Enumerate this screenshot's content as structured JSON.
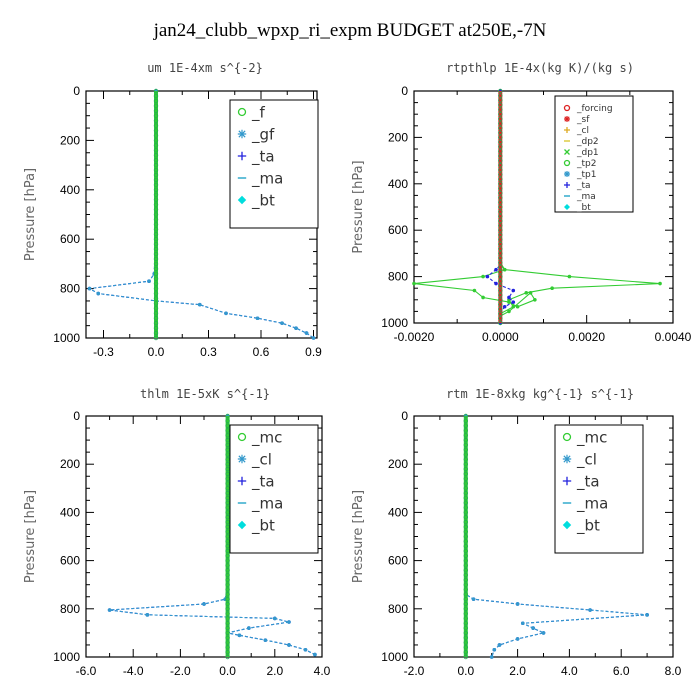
{
  "title": "jan24_clubb_wpxp_ri_expm  BUDGET at250E,-7N",
  "chart_data": [
    {
      "type": "line",
      "title": "um  1E-4xm s^{-2}",
      "ylabel": "Pressure [hPa]",
      "xlim": [
        -0.4,
        0.92
      ],
      "ylim": [
        1000,
        0
      ],
      "xticks": [
        "-0.3",
        "0.0",
        "0.3",
        "0.6",
        "0.9"
      ],
      "xtick_values": [
        -0.3,
        0.0,
        0.3,
        0.6,
        0.9
      ],
      "yticks": [
        "0",
        "200",
        "400",
        "600",
        "800",
        "1000"
      ],
      "legend_position": "top-right",
      "legend": [
        {
          "name": "_f",
          "color": "#33cc33",
          "marker": "o"
        },
        {
          "name": "_gf",
          "color": "#3399cc",
          "marker": "*"
        },
        {
          "name": "_ta",
          "color": "#2222dd",
          "marker": "+"
        },
        {
          "name": "_ma",
          "color": "#33aacc",
          "marker": "-"
        },
        {
          "name": "_bt",
          "color": "#00dddd",
          "marker": "diamond"
        }
      ],
      "series": [
        {
          "name": "_ta",
          "color": "#1133dd",
          "dashed": true,
          "x": [
            0,
            0,
            -0.01,
            -0.04,
            -0.38,
            -0.33,
            0.0,
            0.25,
            0.4,
            0.58,
            0.72,
            0.8,
            0.86,
            0.9
          ],
          "y": [
            0,
            500,
            740,
            770,
            800,
            820,
            850,
            865,
            900,
            920,
            940,
            960,
            980,
            1000
          ]
        },
        {
          "name": "_gf",
          "color": "#3399cc",
          "dashed": true,
          "x": [
            0,
            0,
            -0.01,
            -0.04,
            -0.38,
            -0.33,
            0.0,
            0.25,
            0.4,
            0.58,
            0.72,
            0.8,
            0.86,
            0.9
          ],
          "y": [
            0,
            500,
            740,
            770,
            800,
            820,
            850,
            865,
            900,
            920,
            940,
            960,
            980,
            1000
          ]
        },
        {
          "name": "_f",
          "color": "#33cc33",
          "dashed": false,
          "x": [
            0,
            0,
            0,
            0,
            0,
            0,
            0,
            0,
            0,
            0,
            0
          ],
          "y": [
            0,
            100,
            200,
            300,
            400,
            500,
            600,
            700,
            800,
            900,
            1000
          ]
        }
      ]
    },
    {
      "type": "line",
      "title": "rtpthlp  1E-4x(kg K)/(kg s)",
      "ylabel": "Pressure [hPa]",
      "xlim": [
        -0.002,
        0.004
      ],
      "ylim": [
        1000,
        0
      ],
      "xticks": [
        "-0.0020",
        "0.0000",
        "0.0020",
        "0.0040"
      ],
      "xtick_values": [
        -0.002,
        0.0,
        0.002,
        0.004
      ],
      "yticks": [
        "0",
        "200",
        "400",
        "600",
        "800",
        "1000"
      ],
      "legend_position": "top-right",
      "legend": [
        {
          "name": "_forcing",
          "color": "#dd2222",
          "marker": "o"
        },
        {
          "name": "_sf",
          "color": "#dd2222",
          "marker": "*"
        },
        {
          "name": "_cl",
          "color": "#ddaa22",
          "marker": "+"
        },
        {
          "name": "_dp2",
          "color": "#ddcc44",
          "marker": "-"
        },
        {
          "name": "_dp1",
          "color": "#33cc33",
          "marker": "x"
        },
        {
          "name": "_tp2",
          "color": "#33cc33",
          "marker": "o"
        },
        {
          "name": "_tp1",
          "color": "#3399cc",
          "marker": "*"
        },
        {
          "name": "_ta",
          "color": "#2222dd",
          "marker": "+"
        },
        {
          "name": "_ma",
          "color": "#33aacc",
          "marker": "-"
        },
        {
          "name": "_bt",
          "color": "#00dddd",
          "marker": "diamond"
        }
      ],
      "series": [
        {
          "name": "_dp1",
          "color": "#33cc33",
          "dashed": false,
          "x": [
            0,
            0,
            0.0001,
            -0.0004,
            -0.002,
            -0.0006,
            -0.0004,
            0.0002,
            0.0004,
            0.0008,
            0.0007,
            0.0002,
            0,
            0
          ],
          "y": [
            0,
            740,
            770,
            800,
            830,
            860,
            890,
            910,
            930,
            900,
            870,
            950,
            970,
            1000
          ]
        },
        {
          "name": "_tp2",
          "color": "#33cc33",
          "dashed": false,
          "x": [
            0,
            0,
            0.0001,
            0.0016,
            0.0037,
            0.0012,
            0.0006,
            0.0002,
            0.0003,
            0,
            0
          ],
          "y": [
            0,
            740,
            770,
            800,
            830,
            850,
            870,
            900,
            930,
            960,
            1000
          ]
        },
        {
          "name": "_ta",
          "color": "#2222dd",
          "dashed": true,
          "x": [
            0,
            0,
            -0.0001,
            -0.0003,
            -0.0001,
            0.0003,
            0.0002,
            0.0003,
            0.0001,
            0,
            0
          ],
          "y": [
            0,
            750,
            770,
            800,
            830,
            860,
            890,
            910,
            930,
            960,
            1000
          ]
        },
        {
          "name": "_forcing",
          "color": "#dd2222",
          "dashed": false,
          "x": [
            0,
            0,
            0,
            0,
            0,
            0,
            0,
            0,
            0,
            0,
            0
          ],
          "y": [
            0,
            100,
            200,
            300,
            400,
            500,
            600,
            700,
            800,
            900,
            1000
          ]
        }
      ]
    },
    {
      "type": "line",
      "title": "thlm  1E-5xK s^{-1}",
      "ylabel": "Pressure [hPa]",
      "xlim": [
        -6,
        4
      ],
      "ylim": [
        1000,
        0
      ],
      "xticks": [
        "-6.0",
        "-4.0",
        "-2.0",
        "0.0",
        "2.0",
        "4.0"
      ],
      "xtick_values": [
        -6,
        -4,
        -2,
        0,
        2,
        4
      ],
      "yticks": [
        "0",
        "200",
        "400",
        "600",
        "800",
        "1000"
      ],
      "legend_position": "top-right",
      "legend": [
        {
          "name": "_mc",
          "color": "#33cc33",
          "marker": "o"
        },
        {
          "name": "_cl",
          "color": "#3399cc",
          "marker": "*"
        },
        {
          "name": "_ta",
          "color": "#2222dd",
          "marker": "+"
        },
        {
          "name": "_ma",
          "color": "#33aacc",
          "marker": "-"
        },
        {
          "name": "_bt",
          "color": "#00dddd",
          "marker": "diamond"
        }
      ],
      "series": [
        {
          "name": "_ta",
          "color": "#1133dd",
          "dashed": true,
          "x": [
            0,
            0,
            -0.1,
            -1.0,
            -5.0,
            -3.4,
            2.0,
            2.6,
            0.9,
            0,
            0.5,
            1.6,
            2.6,
            3.3,
            3.7
          ],
          "y": [
            0,
            700,
            760,
            780,
            805,
            825,
            840,
            855,
            880,
            900,
            910,
            930,
            950,
            970,
            990
          ]
        },
        {
          "name": "_cl",
          "color": "#3399cc",
          "dashed": true,
          "x": [
            0,
            0,
            -0.1,
            -1.0,
            -5.0,
            -3.4,
            2.0,
            2.6,
            0.9,
            0,
            0.5,
            1.6,
            2.6,
            3.3,
            3.7
          ],
          "y": [
            0,
            700,
            760,
            780,
            805,
            825,
            840,
            855,
            880,
            900,
            910,
            930,
            950,
            970,
            990
          ]
        },
        {
          "name": "_mc",
          "color": "#33cc33",
          "dashed": false,
          "x": [
            0,
            0,
            0,
            0,
            0,
            0,
            0,
            0,
            0,
            0,
            0
          ],
          "y": [
            0,
            100,
            200,
            300,
            400,
            500,
            600,
            700,
            800,
            900,
            1000
          ]
        }
      ]
    },
    {
      "type": "line",
      "title": "rtm  1E-8xkg kg^{-1} s^{-1}",
      "ylabel": "Pressure [hPa]",
      "xlim": [
        -2,
        8
      ],
      "ylim": [
        1000,
        0
      ],
      "xticks": [
        "-2.0",
        "0.0",
        "2.0",
        "4.0",
        "6.0",
        "8.0"
      ],
      "xtick_values": [
        -2,
        0,
        2,
        4,
        6,
        8
      ],
      "yticks": [
        "0",
        "200",
        "400",
        "600",
        "800",
        "1000"
      ],
      "legend_position": "top-right",
      "legend": [
        {
          "name": "_mc",
          "color": "#33cc33",
          "marker": "o"
        },
        {
          "name": "_cl",
          "color": "#3399cc",
          "marker": "*"
        },
        {
          "name": "_ta",
          "color": "#2222dd",
          "marker": "+"
        },
        {
          "name": "_ma",
          "color": "#33aacc",
          "marker": "-"
        },
        {
          "name": "_bt",
          "color": "#00dddd",
          "marker": "diamond"
        }
      ],
      "series": [
        {
          "name": "_ta",
          "color": "#1133dd",
          "dashed": true,
          "x": [
            0,
            0,
            0.3,
            2.0,
            4.8,
            7.0,
            2.2,
            2.6,
            3.0,
            2.0,
            1.3,
            1.1,
            1.0
          ],
          "y": [
            0,
            740,
            760,
            780,
            805,
            825,
            860,
            880,
            900,
            925,
            950,
            970,
            1000
          ]
        },
        {
          "name": "_cl",
          "color": "#3399cc",
          "dashed": true,
          "x": [
            0,
            0,
            0.3,
            2.0,
            4.8,
            7.0,
            2.2,
            2.6,
            3.0,
            2.0,
            1.3,
            1.1,
            1.0
          ],
          "y": [
            0,
            740,
            760,
            780,
            805,
            825,
            860,
            880,
            900,
            925,
            950,
            970,
            1000
          ]
        },
        {
          "name": "_mc",
          "color": "#33cc33",
          "dashed": false,
          "x": [
            0,
            0,
            0,
            0,
            0,
            0,
            0,
            0,
            0,
            0,
            0
          ],
          "y": [
            0,
            100,
            200,
            300,
            400,
            500,
            600,
            700,
            800,
            900,
            1000
          ]
        }
      ]
    }
  ]
}
